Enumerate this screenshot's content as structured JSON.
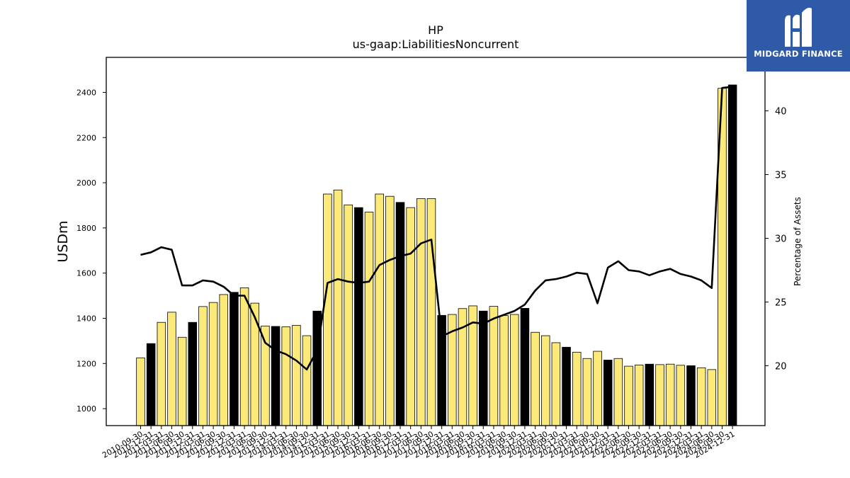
{
  "chart_data": {
    "type": "bar",
    "title": "HP",
    "subtitle": "us-gaap:LiabilitiesNoncurrent",
    "ylabel": "USDm",
    "y2label": "Percentage of Assets",
    "ylim": [
      925,
      2555
    ],
    "y2lim": [
      15.3,
      44.2
    ],
    "yticks": [
      1000,
      1200,
      1400,
      1600,
      1800,
      2000,
      2200,
      2400
    ],
    "y2ticks": [
      20,
      25,
      30,
      35,
      40
    ],
    "categories": [
      "2010-09-30",
      "2010-12-31",
      "2011-03-31",
      "2011-06-30",
      "2011-09-30",
      "2011-12-31",
      "2012-03-31",
      "2012-06-30",
      "2012-09-30",
      "2012-12-31",
      "2013-03-31",
      "2013-06-30",
      "2013-09-30",
      "2013-12-31",
      "2014-03-31",
      "2014-06-30",
      "2014-09-30",
      "2014-12-31",
      "2015-03-31",
      "2015-06-30",
      "2015-09-30",
      "2015-12-31",
      "2016-03-31",
      "2016-06-30",
      "2016-09-30",
      "2016-12-31",
      "2017-03-31",
      "2017-06-30",
      "2017-09-30",
      "2017-12-31",
      "2018-03-31",
      "2018-06-30",
      "2018-09-30",
      "2018-12-31",
      "2019-03-31",
      "2019-06-30",
      "2019-09-30",
      "2019-12-31",
      "2020-03-31",
      "2020-06-30",
      "2020-09-30",
      "2020-12-31",
      "2021-03-31",
      "2021-06-30",
      "2021-09-30",
      "2021-12-31",
      "2022-03-31",
      "2022-06-30",
      "2022-09-30",
      "2022-12-31",
      "2023-03-31",
      "2023-06-30",
      "2023-09-30",
      "2023-12-31",
      "2024-03-31",
      "2024-06-30",
      "2024-09-30",
      "2024-12-31"
    ],
    "series": [
      {
        "type": "bar",
        "values": [
          1225,
          1288,
          1382,
          1427,
          1316,
          1382,
          1452,
          1470,
          1505,
          1515,
          1535,
          1467,
          1366,
          1364,
          1362,
          1369,
          1323,
          1432,
          1950,
          1968,
          1902,
          1890,
          1870,
          1950,
          1940,
          1913,
          1890,
          1930,
          1930,
          1413,
          1417,
          1443,
          1455,
          1432,
          1453,
          1412,
          1417,
          1444,
          1338,
          1323,
          1292,
          1272,
          1250,
          1222,
          1254,
          1215,
          1222,
          1188,
          1193,
          1197,
          1195,
          1197,
          1192,
          1190,
          1181,
          1173,
          2418,
          2433
        ],
        "fiscal_year_end": [
          false,
          true,
          false,
          false,
          false,
          true,
          false,
          false,
          false,
          true,
          false,
          false,
          false,
          true,
          false,
          false,
          false,
          true,
          false,
          false,
          false,
          true,
          false,
          false,
          false,
          true,
          false,
          false,
          false,
          true,
          false,
          false,
          false,
          true,
          false,
          false,
          false,
          true,
          false,
          false,
          false,
          true,
          false,
          false,
          false,
          true,
          false,
          false,
          false,
          true,
          false,
          false,
          false,
          true,
          false,
          false,
          false,
          true
        ]
      },
      {
        "type": "line",
        "axis": "right",
        "values": [
          28.7,
          28.9,
          29.3,
          29.1,
          26.3,
          26.3,
          26.7,
          26.6,
          26.2,
          25.5,
          25.5,
          23.8,
          21.8,
          21.2,
          20.9,
          20.4,
          19.7,
          21.2,
          26.5,
          26.8,
          26.6,
          26.5,
          26.6,
          27.9,
          28.3,
          28.6,
          28.8,
          29.6,
          29.9,
          22.3,
          22.7,
          23.0,
          23.4,
          23.3,
          23.7,
          24.0,
          24.3,
          24.8,
          25.9,
          26.7,
          26.8,
          27.0,
          27.3,
          27.2,
          24.9,
          27.7,
          28.2,
          27.5,
          27.4,
          27.1,
          27.4,
          27.6,
          27.2,
          27.0,
          26.7,
          26.1,
          41.8,
          41.9
        ]
      }
    ],
    "colors": {
      "bar": "#fbe97a",
      "bar_fiscal_year_end": "#000000",
      "line": "#000000"
    }
  },
  "logo": {
    "text": "MIDGARD FINANCE"
  }
}
